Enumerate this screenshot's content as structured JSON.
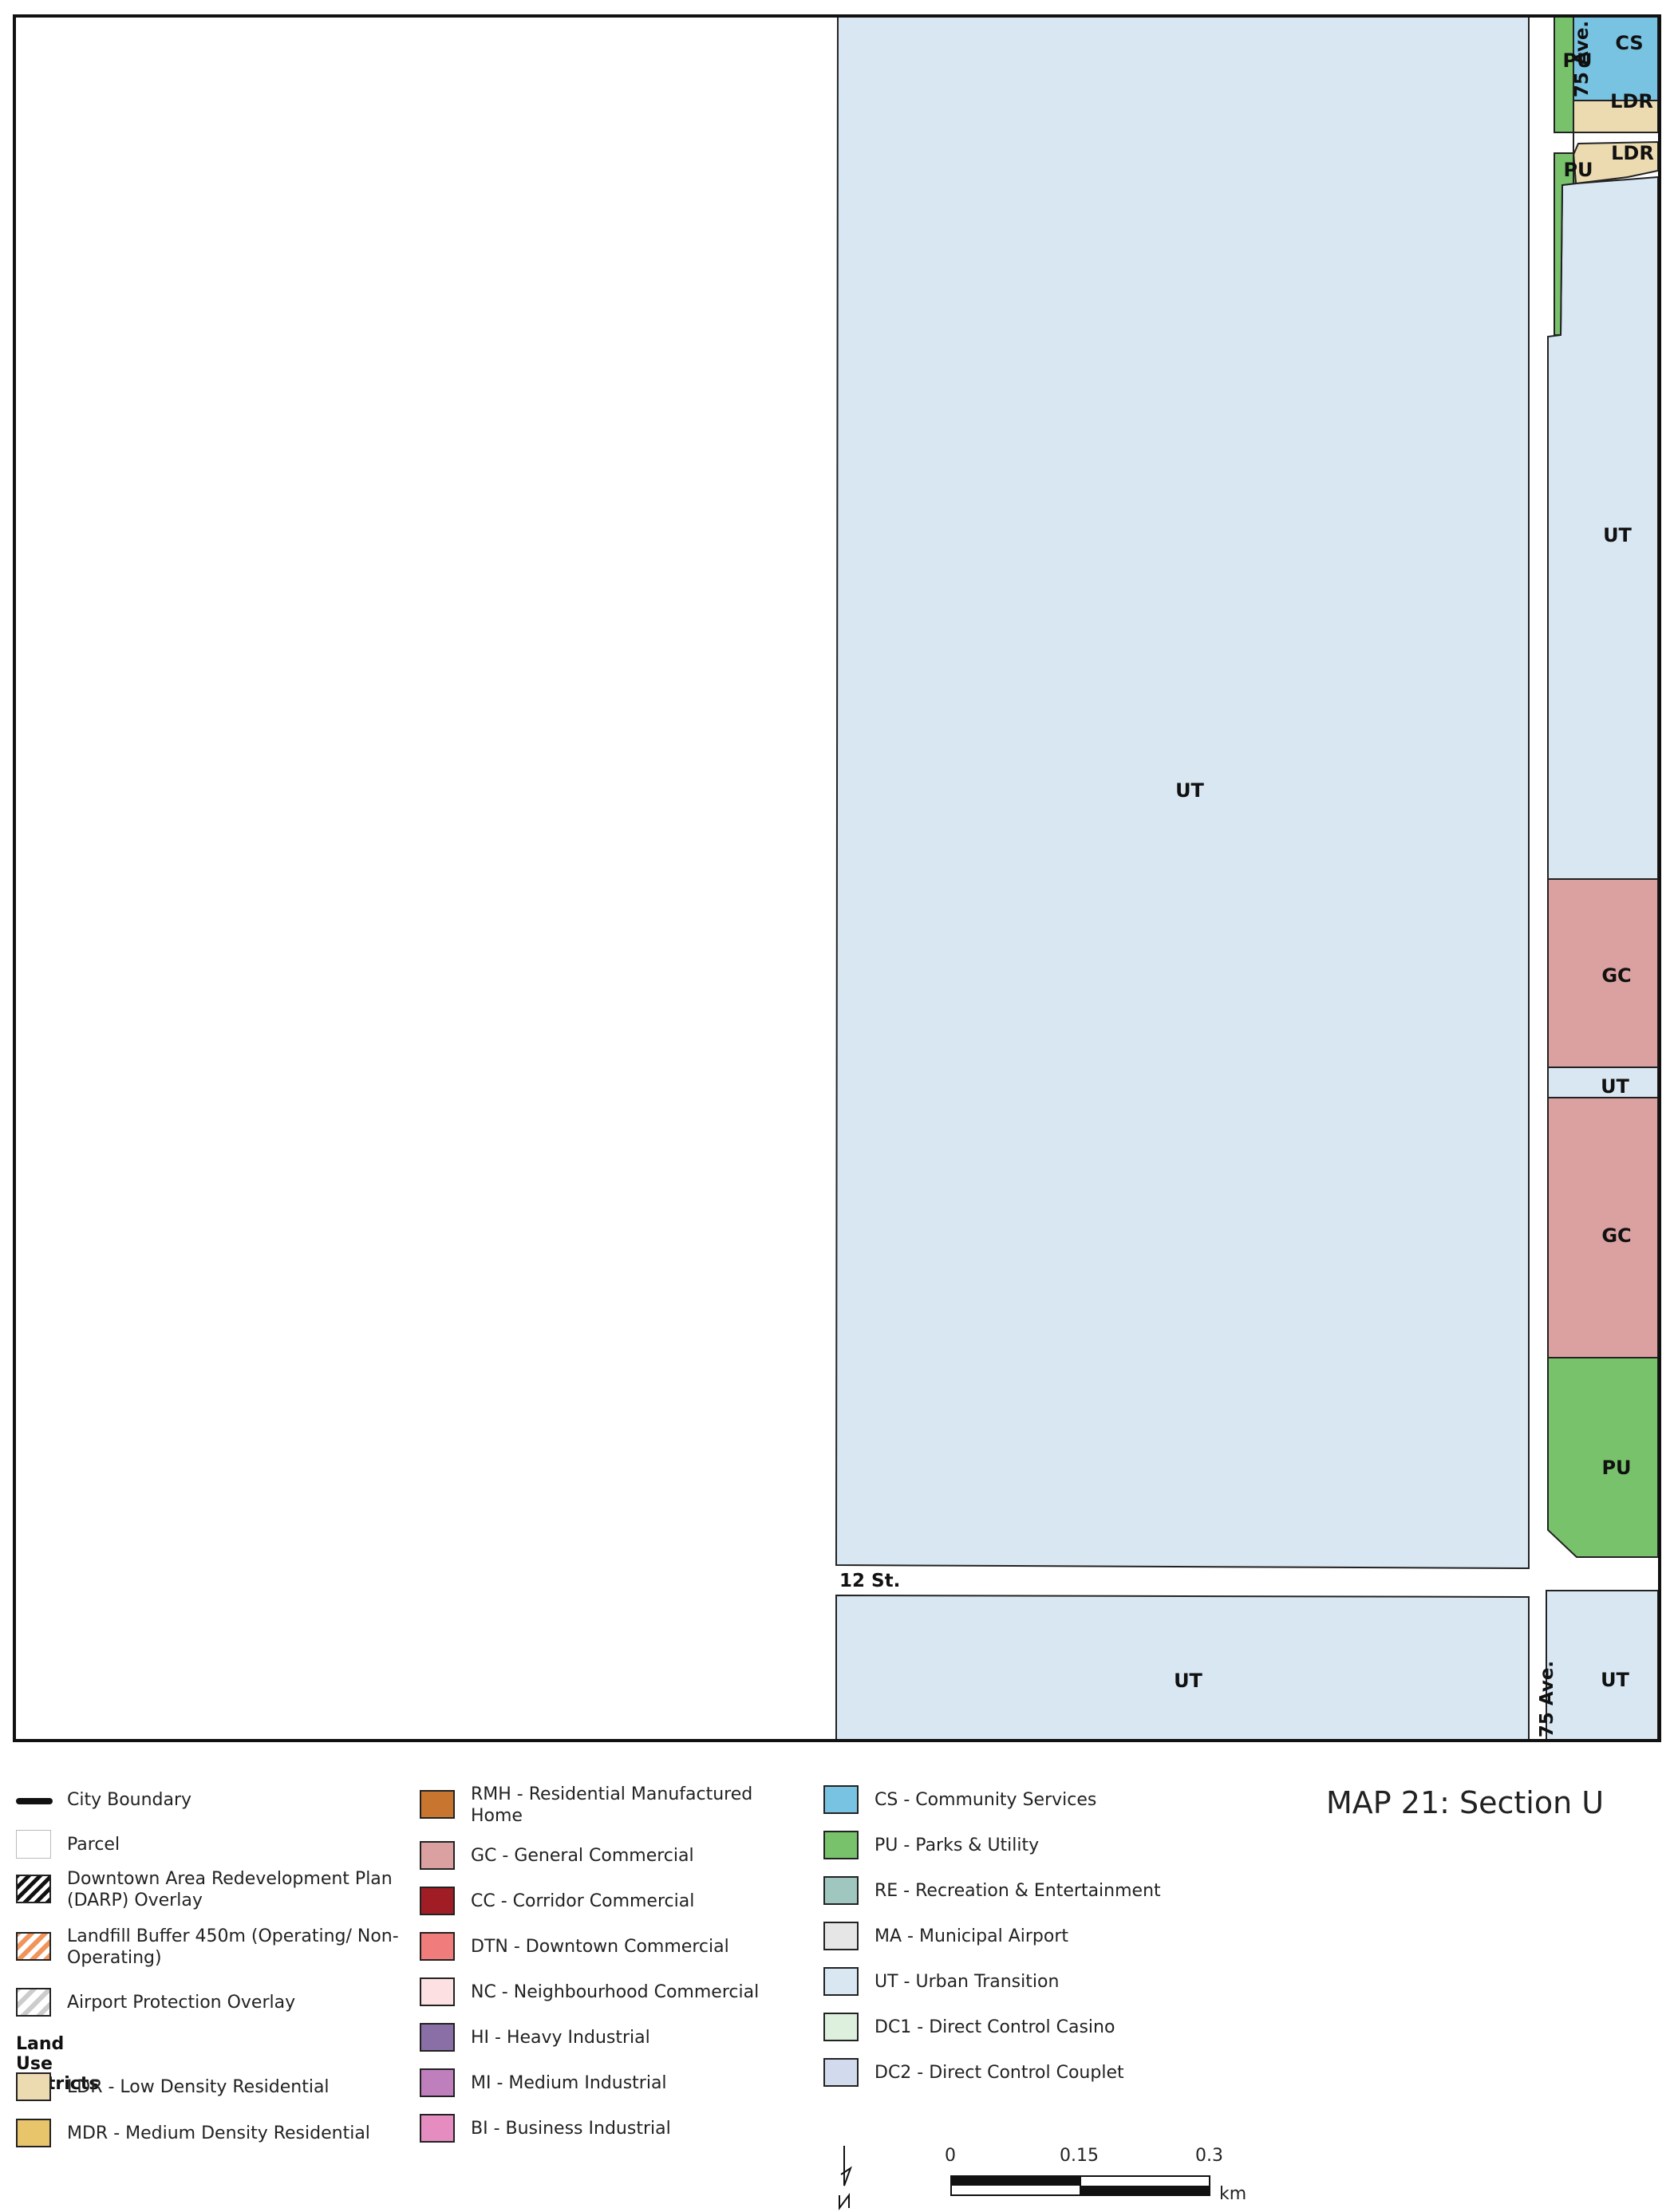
{
  "map": {
    "zones": [
      {
        "id": "big-ut",
        "code": "UT",
        "color": "#d9e7f3"
      },
      {
        "id": "ut-east-upper",
        "code": "UT",
        "color": "#d9e7f3"
      },
      {
        "id": "gc-upper",
        "code": "GC",
        "color": "#dba1a1"
      },
      {
        "id": "ut-strip",
        "code": "UT",
        "color": "#d9e7f3"
      },
      {
        "id": "gc-lower",
        "code": "GC",
        "color": "#dba1a1"
      },
      {
        "id": "pu-lower",
        "code": "PU",
        "color": "#77c26b"
      },
      {
        "id": "cs-top",
        "code": "CS",
        "color": "#78c3e2"
      },
      {
        "id": "pu-top",
        "code": "PU",
        "color": "#77c26b"
      },
      {
        "id": "ldr-top",
        "code": "LDR",
        "color": "#ecdbb0"
      },
      {
        "id": "ldr-second",
        "code": "LDR",
        "color": "#ecdbb0"
      },
      {
        "id": "pu-strip",
        "code": "PU",
        "color": "#77c26b"
      },
      {
        "id": "ut-bottom-left",
        "code": "UT",
        "color": "#d9e7f3"
      },
      {
        "id": "ut-bottom-right",
        "code": "UT",
        "color": "#d9e7f3"
      }
    ],
    "streets": {
      "ave_top": "75 Ave.",
      "street_12": "12 St.",
      "ave_bottom": "75 Ave."
    }
  },
  "title": "MAP 21: Section U",
  "legend": {
    "col1": {
      "items": [
        {
          "label": "City Boundary",
          "kind": "line"
        },
        {
          "label": "Parcel",
          "kind": "parcel",
          "color": "#ffffff"
        },
        {
          "label": "Downtown Area Redevelopment Plan (DARP) Overlay",
          "kind": "hatch-black"
        },
        {
          "label": "Landfill Buffer 450m (Operating/ Non-Operating)",
          "kind": "hatch-orange"
        },
        {
          "label": "Airport Protection Overlay",
          "kind": "hatch-grey"
        }
      ],
      "heading": "Land Use Districts",
      "districts": [
        {
          "label": "LDR - Low Density Residential",
          "color": "#ecdbb0"
        },
        {
          "label": "MDR - Medium Density Residential",
          "color": "#e8c46b"
        }
      ]
    },
    "col2": [
      {
        "label": "RMH - Residential Manufactured Home",
        "color": "#c8762f"
      },
      {
        "label": "GC - General Commercial",
        "color": "#dba1a1"
      },
      {
        "label": "CC - Corridor Commercial",
        "color": "#a11d25"
      },
      {
        "label": "DTN - Downtown Commercial",
        "color": "#f07c7c"
      },
      {
        "label": "NC - Neighbourhood Commercial",
        "color": "#fde0e2"
      },
      {
        "label": "HI - Heavy Industrial",
        "color": "#8a6fa6"
      },
      {
        "label": "MI - Medium Industrial",
        "color": "#bf7fbd"
      },
      {
        "label": "BI - Business Industrial",
        "color": "#e58cc0"
      }
    ],
    "col3": [
      {
        "label": "CS - Community Services",
        "color": "#78c3e2"
      },
      {
        "label": "PU - Parks & Utility",
        "color": "#77c26b"
      },
      {
        "label": "RE - Recreation & Entertainment",
        "color": "#9fc7c0"
      },
      {
        "label": "MA - Municipal Airport",
        "color": "#e6e6e6"
      },
      {
        "label": "UT - Urban Transition",
        "color": "#d9e7f3"
      },
      {
        "label": "DC1 - Direct Control Casino",
        "color": "#ddf0de"
      },
      {
        "label": "DC2 - Direct Control Couplet",
        "color": "#d2daed"
      }
    ]
  },
  "scale": {
    "ticks": [
      "0",
      "0.15",
      "0.3"
    ],
    "unit": "km",
    "north": "N"
  }
}
